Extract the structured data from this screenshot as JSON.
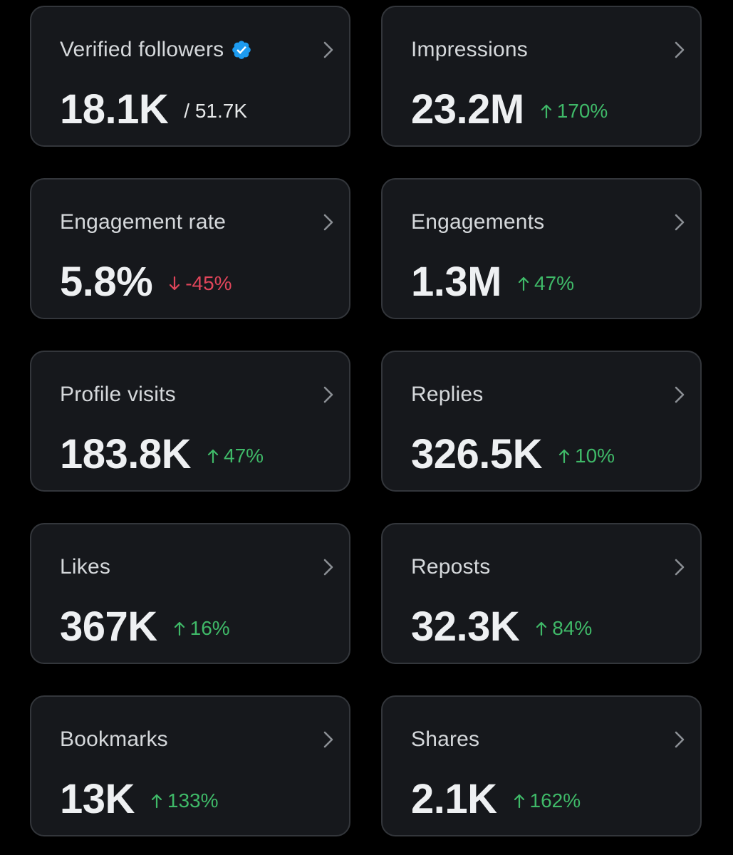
{
  "cards": [
    {
      "label": "Verified followers",
      "value": "18.1K",
      "total": "/ 51.7K",
      "change": "",
      "direction": ""
    },
    {
      "label": "Impressions",
      "value": "23.2M",
      "total": "",
      "change": "170%",
      "direction": "up"
    },
    {
      "label": "Engagement rate",
      "value": "5.8%",
      "total": "",
      "change": "-45%",
      "direction": "down"
    },
    {
      "label": "Engagements",
      "value": "1.3M",
      "total": "",
      "change": "47%",
      "direction": "up"
    },
    {
      "label": "Profile visits",
      "value": "183.8K",
      "total": "",
      "change": "47%",
      "direction": "up"
    },
    {
      "label": "Replies",
      "value": "326.5K",
      "total": "",
      "change": "10%",
      "direction": "up"
    },
    {
      "label": "Likes",
      "value": "367K",
      "total": "",
      "change": "16%",
      "direction": "up"
    },
    {
      "label": "Reposts",
      "value": "32.3K",
      "total": "",
      "change": "84%",
      "direction": "up"
    },
    {
      "label": "Bookmarks",
      "value": "13K",
      "total": "",
      "change": "133%",
      "direction": "up"
    },
    {
      "label": "Shares",
      "value": "2.1K",
      "total": "",
      "change": "162%",
      "direction": "up"
    }
  ],
  "colors": {
    "positive": "#3fb968",
    "negative": "#e0455a",
    "verified_badge": "#1d9bf0"
  },
  "icons": {
    "verified": "verified-badge-icon",
    "chevron": "chevron-right-icon",
    "up": "arrow-up-icon",
    "down": "arrow-down-icon"
  }
}
